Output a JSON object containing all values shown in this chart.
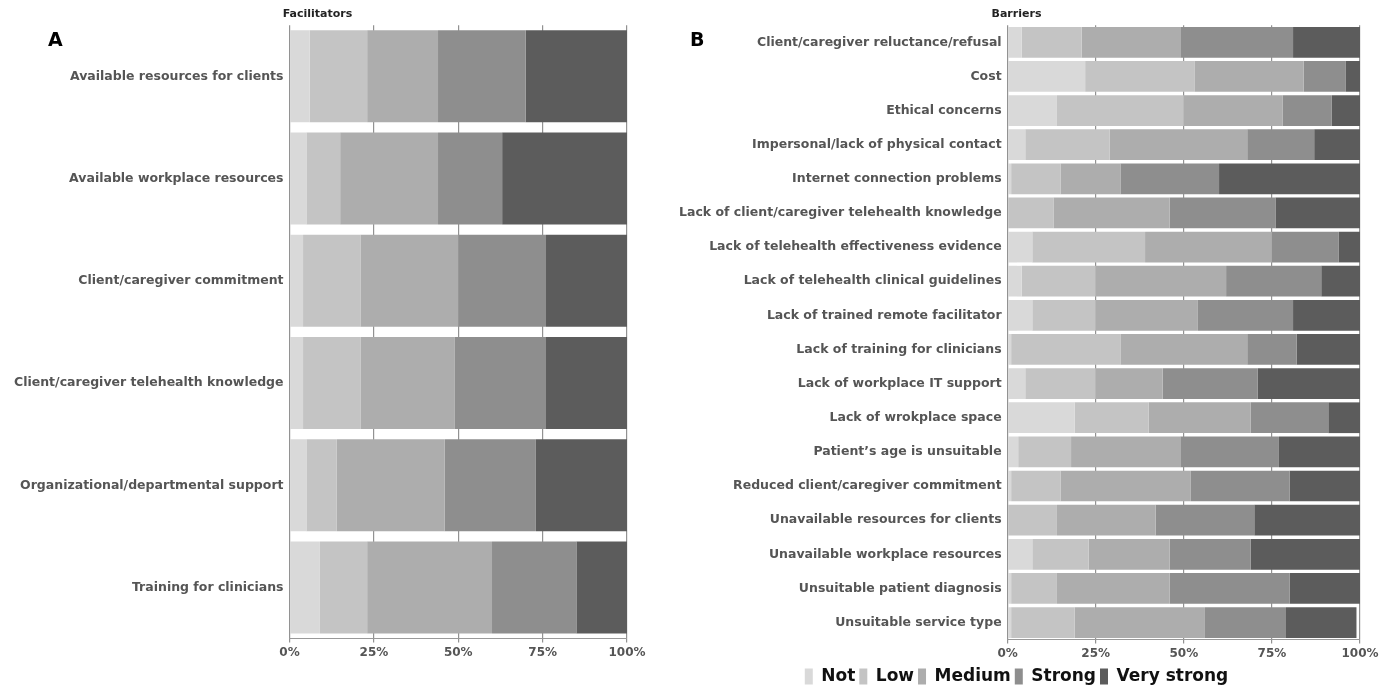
{
  "chart_data": [
    {
      "type": "bar",
      "orientation": "horizontal",
      "stacked": true,
      "title": "Facilitators",
      "annotations": [
        "A"
      ],
      "categories": [
        "Available resources for clients",
        "Available workplace resources",
        "Client/caregiver commitment",
        "Client/caregiver telehealth knowledge",
        "Organizational/departmental support",
        "Training for clinicians"
      ],
      "series": [
        {
          "color": "#d9d9d9",
          "values": [
            6,
            5,
            4,
            4,
            5,
            9
          ]
        },
        {
          "color": "#c4c4c4",
          "values": [
            17,
            10,
            17,
            17,
            9,
            14
          ]
        },
        {
          "color": "#adadad",
          "values": [
            21,
            29,
            29,
            28,
            32,
            37
          ]
        },
        {
          "color": "#8e8e8e",
          "values": [
            26,
            19,
            26,
            27,
            27,
            25
          ]
        },
        {
          "color": "#5c5c5c",
          "values": [
            30,
            37,
            24,
            24,
            27,
            15
          ]
        }
      ],
      "xlim": [
        0,
        100
      ],
      "xticks": [
        {
          "value": 0,
          "label": "0%"
        },
        {
          "value": 25,
          "label": "25%"
        },
        {
          "value": 50,
          "label": "50%"
        },
        {
          "value": 75,
          "label": "75%"
        },
        {
          "value": 100,
          "label": "100%"
        }
      ],
      "grid": "x",
      "legend": false
    },
    {
      "type": "bar",
      "orientation": "horizontal",
      "stacked": true,
      "title": "Barriers",
      "annotations": [
        "B"
      ],
      "categories": [
        "Client/caregiver reluctance/refusal",
        "Cost",
        "Ethical concerns",
        "Impersonal/lack of physical contact",
        "Internet connection problems",
        "Lack of client/caregiver telehealth knowledge",
        "Lack of telehealth effectiveness evidence",
        "Lack of telehealth clinical guidelines",
        "Lack of trained remote facilitator",
        "Lack of training for clinicians",
        "Lack of workplace IT support",
        "Lack of wrokplace space",
        "Patient’s age is unsuitable",
        "Reduced client/caregiver commitment",
        "Unavailable resources for clients",
        "Unavailable workplace resources",
        "Unsuitable patient diagnosis",
        "Unsuitable service type"
      ],
      "series": [
        {
          "name": "Not",
          "color": "#d9d9d9",
          "values": [
            4,
            22,
            14,
            5,
            1,
            0,
            7,
            4,
            7,
            1,
            5,
            19,
            3,
            1,
            0,
            7,
            1,
            1
          ]
        },
        {
          "name": "Low",
          "color": "#c4c4c4",
          "values": [
            17,
            31,
            36,
            24,
            14,
            13,
            32,
            21,
            18,
            31,
            20,
            21,
            15,
            14,
            14,
            16,
            13,
            18
          ]
        },
        {
          "name": "Medium",
          "color": "#adadad",
          "values": [
            28,
            31,
            28,
            39,
            17,
            33,
            36,
            37,
            29,
            36,
            19,
            29,
            31,
            37,
            28,
            23,
            32,
            37
          ]
        },
        {
          "name": "Strong",
          "color": "#8e8e8e",
          "values": [
            32,
            12,
            14,
            19,
            28,
            30,
            19,
            27,
            27,
            14,
            27,
            22,
            28,
            28,
            28,
            23,
            34,
            23
          ]
        },
        {
          "name": "Very strong",
          "color": "#5c5c5c",
          "values": [
            19,
            4,
            8,
            13,
            40,
            24,
            6,
            11,
            19,
            18,
            29,
            9,
            23,
            20,
            30,
            31,
            20,
            20
          ]
        }
      ],
      "xlim": [
        0,
        100
      ],
      "xticks": [
        {
          "value": 0,
          "label": "0%"
        },
        {
          "value": 25,
          "label": "25%"
        },
        {
          "value": 50,
          "label": "50%"
        },
        {
          "value": 75,
          "label": "75%"
        },
        {
          "value": 100,
          "label": "100%"
        }
      ],
      "grid": "x",
      "legend": "bottom"
    }
  ]
}
